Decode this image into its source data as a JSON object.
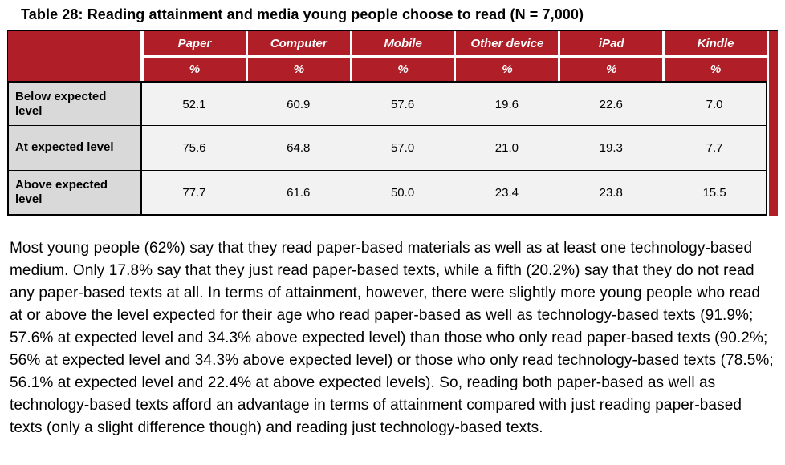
{
  "title": "Table 28: Reading attainment and media young people choose to read (N = 7,000)",
  "table": {
    "columns": [
      "Paper",
      "Computer",
      "Mobile",
      "Other device",
      "iPad",
      "Kindle"
    ],
    "units": [
      "%",
      "%",
      "%",
      "%",
      "%",
      "%"
    ],
    "rows": [
      {
        "label": "Below expected level",
        "values": [
          "52.1",
          "60.9",
          "57.6",
          "19.6",
          "22.6",
          "7.0"
        ]
      },
      {
        "label": "At expected level",
        "values": [
          "75.6",
          "64.8",
          "57.0",
          "21.0",
          "19.3",
          "7.7"
        ]
      },
      {
        "label": "Above expected level",
        "values": [
          "77.7",
          "61.6",
          "50.0",
          "23.4",
          "23.8",
          "15.5"
        ]
      }
    ]
  },
  "paragraph": "Most young people (62%) say that they read paper-based materials as well as at least one technology-based medium. Only 17.8% say that they just read paper-based texts, while a fifth (20.2%) say that they do not read any paper-based texts at all. In terms of attainment, however, there were slightly more young people who read at or above the level expected for their age who read paper-based as well as technology-based texts (91.9%; 57.6% at expected level and 34.3% above expected level) than those who only read paper-based texts (90.2%; 56% at expected level and 34.3% above expected level) or those who only read technology-based texts (78.5%; 56.1% at expected level and 22.4% at above expected levels). So, reading both paper-based as well as technology-based texts afford an advantage in terms of attainment compared with just reading paper-based texts (only a slight difference though) and reading just technology-based texts.",
  "colors": {
    "header_red": "#b01e28",
    "label_gray": "#d9d9d9",
    "cell_gray": "#f2f2f2"
  }
}
